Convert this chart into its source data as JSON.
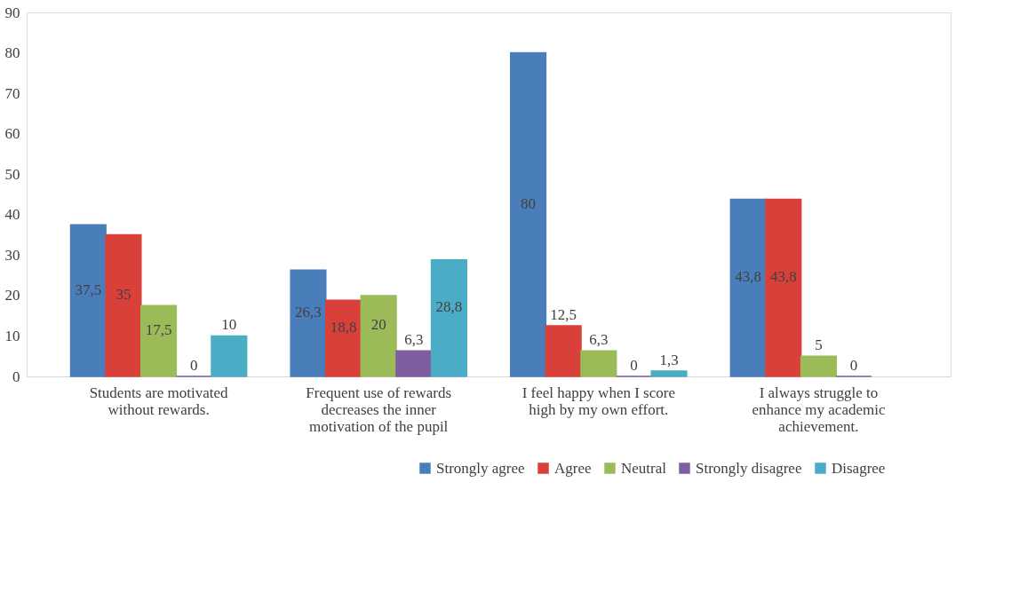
{
  "chart_data": {
    "type": "bar",
    "categories": [
      "Students are motivated without rewards.",
      "Frequent use of rewards decreases the inner motivation of the pupil",
      "I feel happy when I score high by my own effort.",
      "I always struggle to enhance my academic achievement."
    ],
    "series": [
      {
        "name": "Strongly agree",
        "color": "#4a7ebb",
        "values": [
          37.5,
          26.3,
          80,
          43.8
        ],
        "value_labels": [
          "37,5",
          "26,3",
          "80",
          "43,8"
        ]
      },
      {
        "name": "Agree",
        "color": "#d9403a",
        "values": [
          35,
          18.8,
          12.5,
          43.8
        ],
        "value_labels": [
          "35",
          "18,8",
          "12,5",
          "43,8"
        ]
      },
      {
        "name": "Neutral",
        "color": "#9bbb59",
        "values": [
          17.5,
          20,
          6.3,
          5
        ],
        "value_labels": [
          "17,5",
          "20",
          "6,3",
          "5"
        ]
      },
      {
        "name": "Strongly disagree",
        "color": "#7d5fa0",
        "values": [
          0,
          6.3,
          0,
          0
        ],
        "value_labels": [
          "0",
          "6,3",
          "0",
          "0"
        ]
      },
      {
        "name": "Disagree",
        "color": "#4bacc6",
        "values": [
          10,
          28.8,
          1.3,
          null
        ],
        "value_labels": [
          "10",
          "28,8",
          "1,3",
          null
        ]
      }
    ],
    "ylim": [
      0,
      90
    ],
    "yticks": [
      0,
      10,
      20,
      30,
      40,
      50,
      60,
      70,
      80,
      90
    ],
    "grid": false,
    "legend": "bottom right"
  }
}
